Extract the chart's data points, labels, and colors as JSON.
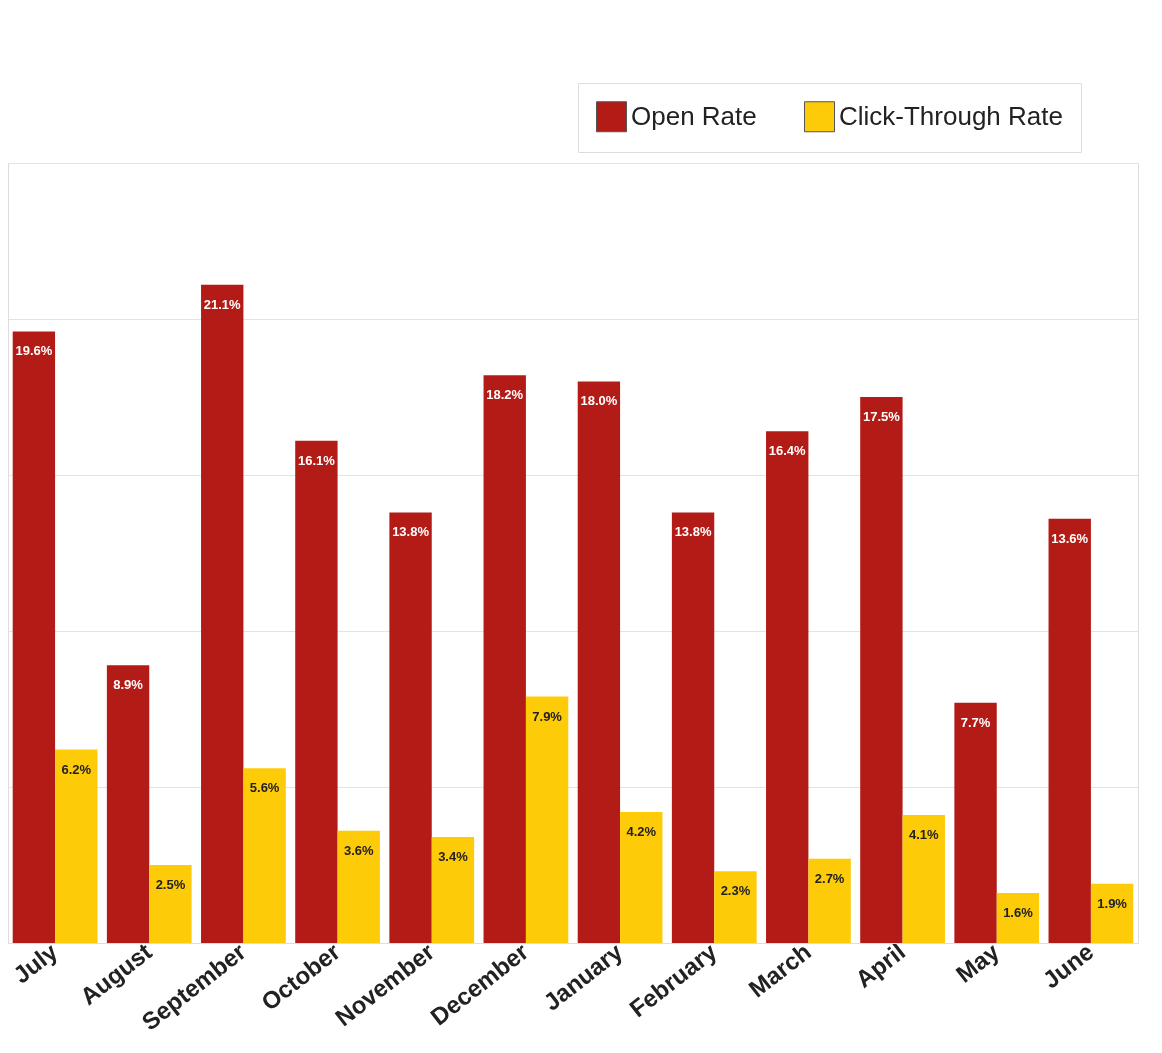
{
  "chart_data": {
    "type": "bar",
    "categories": [
      "July",
      "August",
      "September",
      "October",
      "November",
      "December",
      "January",
      "February",
      "March",
      "April",
      "May",
      "June"
    ],
    "series": [
      {
        "name": "Open Rate",
        "color": "#b31b17",
        "values": [
          19.6,
          8.9,
          21.1,
          16.1,
          13.8,
          18.2,
          18.0,
          13.8,
          16.4,
          17.5,
          7.7,
          13.6
        ],
        "value_labels": [
          "19.6%",
          "8.9%",
          "21.1%",
          "16.1%",
          "13.8%",
          "18.2%",
          "18.0%",
          "13.8%",
          "16.4%",
          "17.5%",
          "7.7%",
          "13.6%"
        ]
      },
      {
        "name": "Click-Through Rate",
        "color": "#fecb08",
        "values": [
          6.2,
          2.5,
          5.6,
          3.6,
          3.4,
          7.9,
          4.2,
          2.3,
          2.7,
          4.1,
          1.6,
          1.9
        ],
        "value_labels": [
          "6.2%",
          "2.5%",
          "5.6%",
          "3.6%",
          "3.4%",
          "7.9%",
          "4.2%",
          "2.3%",
          "2.7%",
          "4.1%",
          "1.6%",
          "1.9%"
        ]
      }
    ],
    "ylim": [
      0,
      25
    ],
    "yticks": [
      {
        "value": 0,
        "label": null
      },
      {
        "value": 5,
        "label": null
      },
      {
        "value": 10,
        "label": null
      },
      {
        "value": 15,
        "label": null
      },
      {
        "value": 20,
        "label": null
      },
      {
        "value": 25,
        "label": null
      }
    ],
    "tick_labels": "x",
    "grid": "y",
    "legend": "top right"
  }
}
